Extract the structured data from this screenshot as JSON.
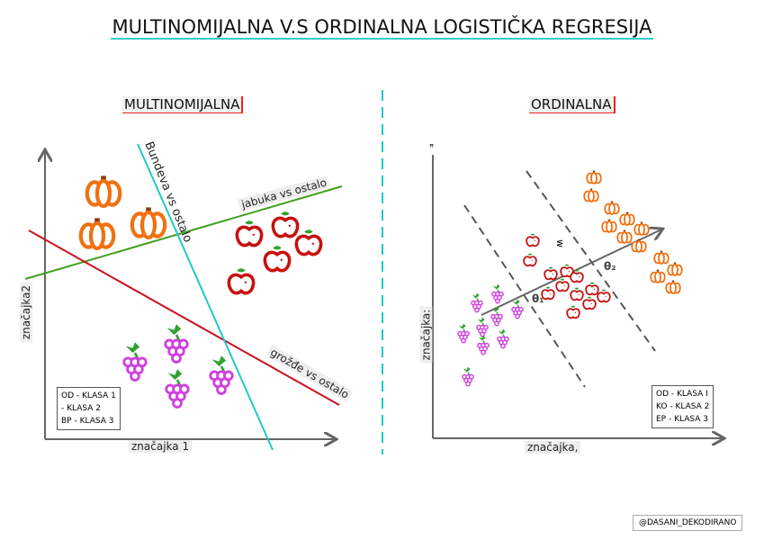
{
  "title": "MULTINOMIJALNA V.S ORDINALNA LOGISTIČKA REGRESIJA",
  "left": {
    "heading": "MULTINOMIJALNA",
    "xlabel": "značajka 1",
    "ylabel": "značajka2",
    "line_labels": {
      "pumpkin": "Bundeva vs ostalo",
      "apple": "jabuka vs ostalo",
      "grape": "grožđe vs ostalo"
    },
    "legend": [
      "OD - KLASA 1",
      "- KLASA 2",
      "BP - KLASA 3"
    ]
  },
  "right": {
    "heading": "ORDINALNA",
    "xlabel": "značajka,",
    "ylabel": "značajka:",
    "y_top": "ꟸ",
    "w_label": "w",
    "theta1": "θ₁",
    "theta2": "θ₂",
    "legend": [
      "OD - KLASA I",
      "KO - KLASA 2",
      "EP - KLASA 3"
    ]
  },
  "credit": "@DASANI_DEKODIRANO",
  "colors": {
    "pumpkin": "#f07010",
    "apple": "#c81010",
    "grape": "#d040e0",
    "leaf": "#30a030",
    "cyan": "#20c8c8",
    "green_line": "#40a020",
    "red_line": "#cc1020"
  }
}
